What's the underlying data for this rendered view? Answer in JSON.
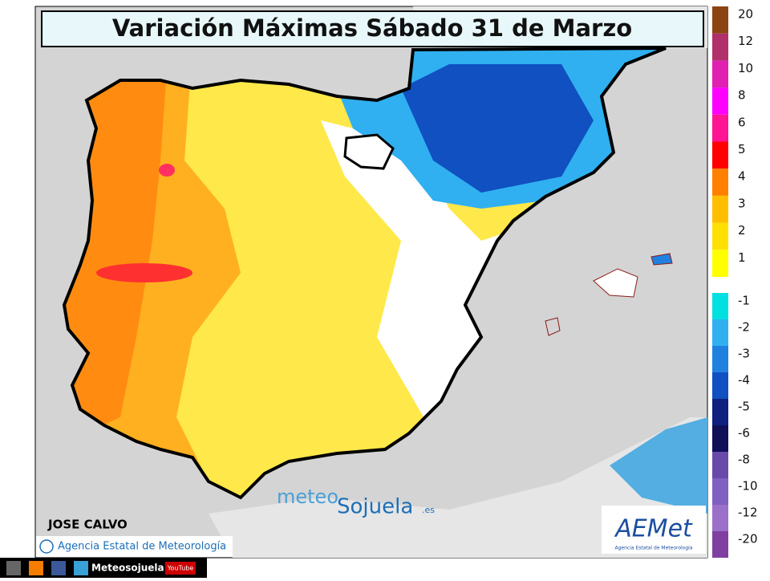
{
  "title": "Variación Máximas Sábado 31 de Marzo",
  "legend": {
    "positive": [
      {
        "label": 20,
        "color": "#8b4513"
      },
      {
        "label": 12,
        "color": "#b0306a"
      },
      {
        "label": 10,
        "color": "#e020b0"
      },
      {
        "label": 8,
        "color": "#ff00ff"
      },
      {
        "label": 6,
        "color": "#ff1493"
      },
      {
        "label": 5,
        "color": "#ff0000"
      },
      {
        "label": 4,
        "color": "#ff7f00"
      },
      {
        "label": 3,
        "color": "#ffbf00"
      },
      {
        "label": 2,
        "color": "#ffe000"
      },
      {
        "label": 1,
        "color": "#ffff00"
      }
    ],
    "negative": [
      {
        "label": -1,
        "color": "#00e0e0"
      },
      {
        "label": -2,
        "color": "#30b0f0"
      },
      {
        "label": -3,
        "color": "#2080e0"
      },
      {
        "label": -4,
        "color": "#1050c0"
      },
      {
        "label": -5,
        "color": "#102080"
      },
      {
        "label": -6,
        "color": "#101058"
      },
      {
        "label": -8,
        "color": "#6a4aa8"
      },
      {
        "label": -10,
        "color": "#8060c0"
      },
      {
        "label": -12,
        "color": "#9a70c8"
      },
      {
        "label": -20,
        "color": "#8040a0"
      }
    ]
  },
  "credits": {
    "author": "JOSE CALVO",
    "agency": "Agencia Estatal de Meteorología",
    "logo": "AEMet",
    "logo_sub": "Agencia Estatal de Meteorología"
  },
  "watermark": {
    "part1": "meteo",
    "part2": "Sojuela",
    "part3": ".es"
  },
  "footer": {
    "social": "Meteosojuela",
    "youtube": "YouTube"
  }
}
